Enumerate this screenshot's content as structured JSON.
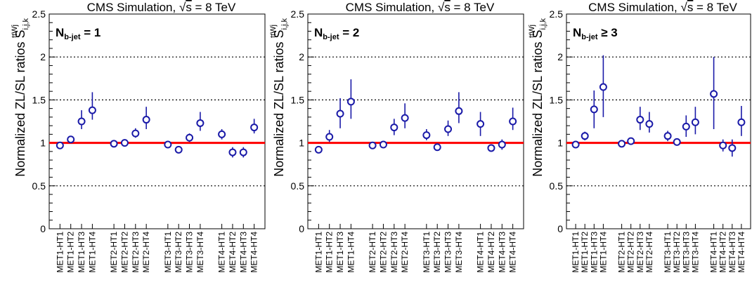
{
  "chart_data": [
    {
      "type": "scatter",
      "title": "CMS Simulation, √s = 8 TeV",
      "title_prefix": "CMS Simulation, ",
      "title_root": "s",
      "title_suffix": " = 8 TeV",
      "label_main": "N",
      "label_sub": "b-jet",
      "label_rel": " = 1",
      "ylabel": "Normalized ZL/SL ratios S",
      "ylabel_sub": "i,j,k",
      "ylabel_sup": "ttWj",
      "ylim": [
        0,
        2.5
      ],
      "yticks": [
        "0",
        "0.5",
        "1",
        "1.5",
        "2",
        "2.5"
      ],
      "gridlines": [
        0.5,
        1.5,
        2.0
      ],
      "reference_line": 1,
      "categories": [
        "MET1-HT1",
        "MET1-HT2",
        "MET1-HT3",
        "MET1-HT4",
        "MET2-HT1",
        "MET2-HT2",
        "MET2-HT3",
        "MET2-HT4",
        "MET3-HT1",
        "MET3-HT2",
        "MET3-HT3",
        "MET3-HT4",
        "MET4-HT1",
        "MET4-HT2",
        "MET4-HT3",
        "MET4-HT4"
      ],
      "values": [
        0.97,
        1.04,
        1.25,
        1.38,
        0.99,
        1.0,
        1.11,
        1.27,
        0.98,
        0.92,
        1.06,
        1.23,
        1.1,
        0.89,
        0.89,
        1.18
      ],
      "err_low": [
        0.02,
        0.03,
        0.09,
        0.11,
        0.02,
        0.03,
        0.05,
        0.11,
        0.02,
        0.04,
        0.05,
        0.09,
        0.06,
        0.06,
        0.06,
        0.07
      ],
      "err_high": [
        0.02,
        0.03,
        0.13,
        0.21,
        0.02,
        0.03,
        0.06,
        0.15,
        0.02,
        0.04,
        0.05,
        0.13,
        0.06,
        0.06,
        0.06,
        0.1
      ]
    },
    {
      "type": "scatter",
      "title": "CMS Simulation, √s = 8 TeV",
      "title_prefix": "CMS Simulation, ",
      "title_root": "s",
      "title_suffix": " = 8 TeV",
      "label_main": "N",
      "label_sub": "b-jet",
      "label_rel": " = 2",
      "ylabel": "Normalized ZL/SL ratios S",
      "ylabel_sub": "i,j,k",
      "ylabel_sup": "ttWj",
      "ylim": [
        0,
        2.5
      ],
      "yticks": [
        "0",
        "0.5",
        "1",
        "1.5",
        "2",
        "2.5"
      ],
      "gridlines": [
        0.5,
        1.5,
        2.0
      ],
      "reference_line": 1,
      "categories": [
        "MET1-HT1",
        "MET1-HT2",
        "MET1-HT3",
        "MET1-HT4",
        "MET2-HT1",
        "MET2-HT2",
        "MET2-HT3",
        "MET2-HT4",
        "MET3-HT1",
        "MET3-HT2",
        "MET3-HT3",
        "MET3-HT4",
        "MET4-HT1",
        "MET4-HT2",
        "MET4-HT3",
        "MET4-HT4"
      ],
      "values": [
        0.92,
        1.07,
        1.34,
        1.48,
        0.97,
        0.98,
        1.18,
        1.29,
        1.09,
        0.95,
        1.16,
        1.37,
        1.22,
        0.94,
        0.98,
        1.25
      ],
      "err_low": [
        0.04,
        0.06,
        0.17,
        0.2,
        0.02,
        0.02,
        0.09,
        0.12,
        0.06,
        0.02,
        0.08,
        0.14,
        0.14,
        0.04,
        0.06,
        0.1
      ],
      "err_high": [
        0.04,
        0.08,
        0.18,
        0.26,
        0.02,
        0.02,
        0.1,
        0.17,
        0.07,
        0.02,
        0.1,
        0.22,
        0.14,
        0.04,
        0.06,
        0.16
      ]
    },
    {
      "type": "scatter",
      "title": "CMS Simulation, √s = 8 TeV",
      "title_prefix": "CMS Simulation, ",
      "title_root": "s",
      "title_suffix": " = 8 TeV",
      "label_main": "N",
      "label_sub": "b-jet",
      "label_rel": " ≥ 3",
      "ylabel": "Normalized ZL/SL ratios S",
      "ylabel_sub": "i,j,k",
      "ylabel_sup": "ttWj",
      "ylim": [
        0,
        2.5
      ],
      "yticks": [
        "0",
        "0.5",
        "1",
        "1.5",
        "2",
        "2.5"
      ],
      "gridlines": [
        0.5,
        1.5,
        2.0
      ],
      "reference_line": 1,
      "categories": [
        "MET1-HT1",
        "MET1-HT2",
        "MET1-HT3",
        "MET1-HT4",
        "MET2-HT1",
        "MET2-HT2",
        "MET2-HT3",
        "MET2-HT4",
        "MET3-HT1",
        "MET3-HT2",
        "MET3-HT3",
        "MET3-HT4",
        "MET4-HT1",
        "MET4-HT2",
        "MET4-HT3",
        "MET4-HT4"
      ],
      "values": [
        0.98,
        1.08,
        1.39,
        1.65,
        0.99,
        1.02,
        1.27,
        1.22,
        1.08,
        1.01,
        1.19,
        1.24,
        1.57,
        0.97,
        0.94,
        1.24
      ],
      "err_low": [
        0.02,
        0.05,
        0.22,
        0.35,
        0.02,
        0.02,
        0.12,
        0.1,
        0.06,
        0.02,
        0.12,
        0.14,
        0.41,
        0.07,
        0.1,
        0.16
      ],
      "err_high": [
        0.02,
        0.05,
        0.22,
        0.37,
        0.02,
        0.02,
        0.15,
        0.14,
        0.06,
        0.02,
        0.13,
        0.18,
        0.43,
        0.07,
        0.1,
        0.19
      ]
    }
  ]
}
